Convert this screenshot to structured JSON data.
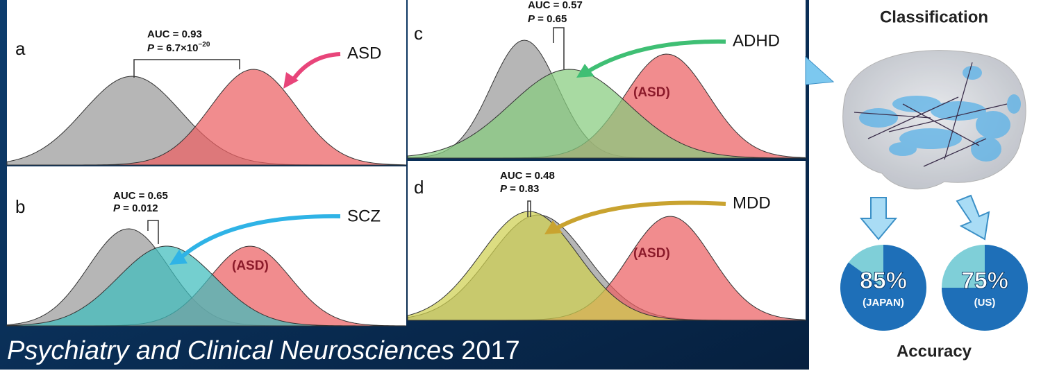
{
  "panels": [
    {
      "letter": "a",
      "auc": "AUC = 0.93",
      "p": "P",
      "p_text": " = 6.7×10",
      "p_exp": "−20",
      "group": "ASD"
    },
    {
      "letter": "b",
      "auc": "AUC = 0.65",
      "p": "P",
      "p_text": " = 0.012",
      "group": "SCZ",
      "asd_label": "(ASD)"
    },
    {
      "letter": "c",
      "auc": "AUC = 0.57",
      "p": "P",
      "p_text": " = 0.65",
      "group": "ADHD",
      "asd_label": "(ASD)"
    },
    {
      "letter": "d",
      "auc": "AUC = 0.48",
      "p": "P",
      "p_text": " = 0.83",
      "group": "MDD",
      "asd_label": "(ASD)"
    }
  ],
  "classification": {
    "title": "Classification",
    "pies": [
      {
        "value": 85,
        "label": "85%",
        "region": "(JAPAN)"
      },
      {
        "value": 75,
        "label": "75%",
        "region": "(US)"
      }
    ],
    "caption": "Accuracy"
  },
  "citation": {
    "journal": "Psychiatry and Clinical Neurosciences",
    "year": "2017"
  }
}
